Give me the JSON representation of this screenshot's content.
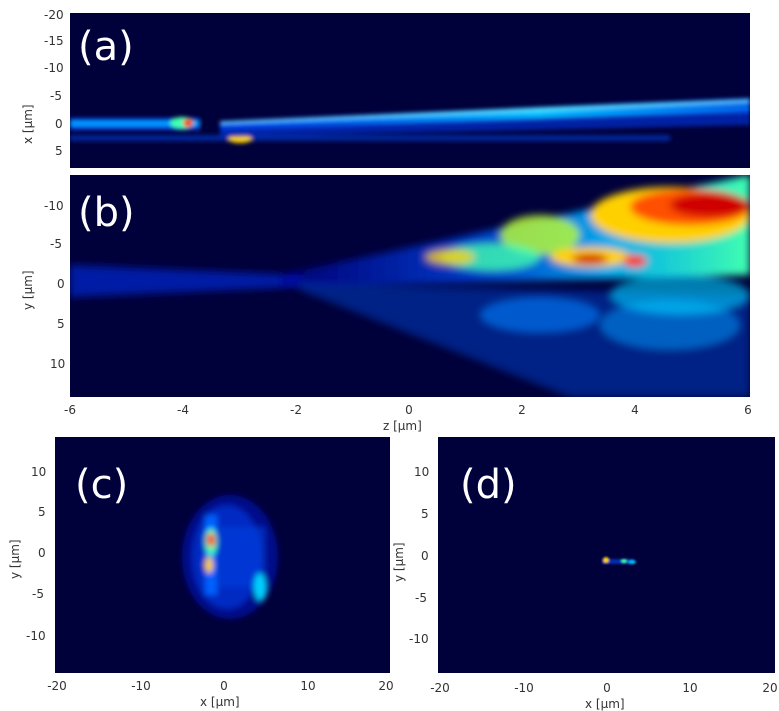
{
  "figure": {
    "colormap": [
      "#00003a",
      "#0000c8",
      "#0060ff",
      "#00d0ff",
      "#40ffb0",
      "#c0ff30",
      "#ffd000",
      "#ff6000",
      "#d00000"
    ],
    "background_color": "#00003a",
    "panels": [
      {
        "letter": "(a)",
        "ylabel": "x [μm]",
        "xlabel": "",
        "yticks": [
          "-20",
          "-15",
          "-10",
          "-5",
          "0",
          "5"
        ],
        "xticks": []
      },
      {
        "letter": "(b)",
        "ylabel": "y [μm]",
        "xlabel": "z [μm]",
        "yticks": [
          "-10",
          "-5",
          "0",
          "5",
          "10"
        ],
        "xticks": [
          "-6",
          "-4",
          "-2",
          "0",
          "2",
          "4",
          "6"
        ]
      },
      {
        "letter": "(c)",
        "ylabel": "y [μm]",
        "xlabel": "x [μm]",
        "yticks": [
          "10",
          "5",
          "0",
          "-5",
          "-10"
        ],
        "xticks": [
          "-20",
          "-10",
          "0",
          "10",
          "20"
        ]
      },
      {
        "letter": "(d)",
        "ylabel": "y [μm]",
        "xlabel": "x [μm]",
        "yticks": [
          "10",
          "5",
          "0",
          "-5",
          "-10"
        ],
        "xticks": [
          "-20",
          "-10",
          "0",
          "10",
          "20"
        ]
      }
    ]
  }
}
